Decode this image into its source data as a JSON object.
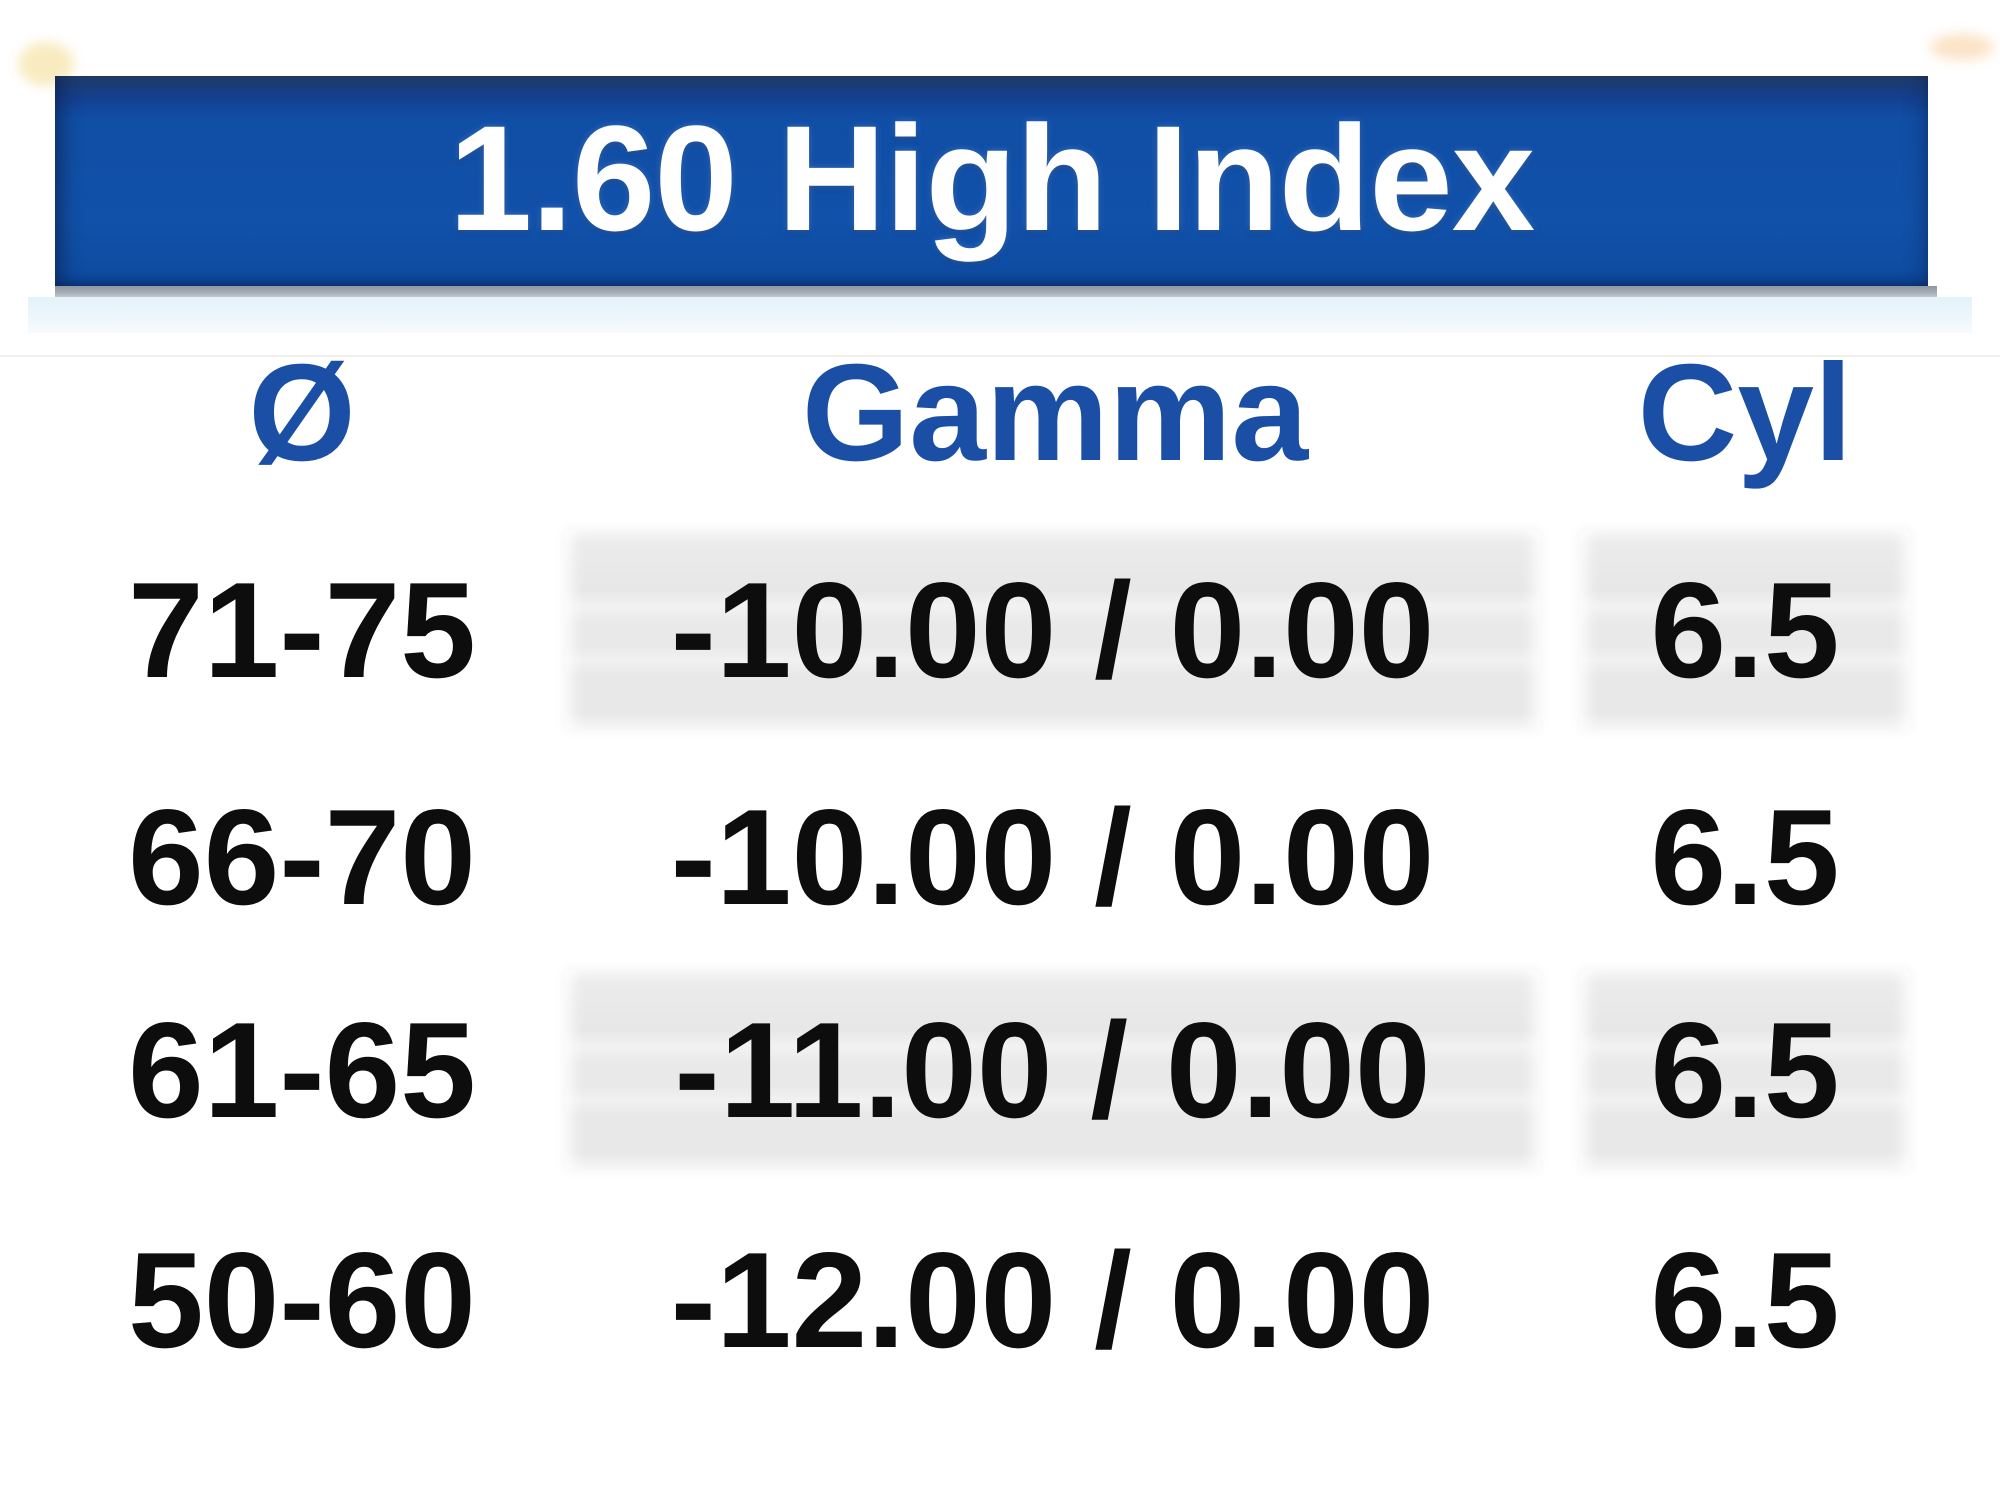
{
  "table": {
    "title": "1.60 High Index",
    "columns": [
      {
        "key": "dia",
        "label": "Ø"
      },
      {
        "key": "gamma",
        "label": "Gamma"
      },
      {
        "key": "cyl",
        "label": "Cyl"
      }
    ],
    "rows": [
      {
        "dia": "71-75",
        "gamma": "-10.00 / 0.00",
        "cyl": "6.5"
      },
      {
        "dia": "66-70",
        "gamma": "-10.00 / 0.00",
        "cyl": "6.5"
      },
      {
        "dia": "61-65",
        "gamma": "-11.00 / 0.00",
        "cyl": "6.5"
      },
      {
        "dia": "50-60",
        "gamma": "-12.00 / 0.00",
        "cyl": "6.5"
      }
    ],
    "colors": {
      "title_bar_blue": "#1150a8",
      "title_text": "#ffffff",
      "column_header_blue": "#1b4fa5",
      "row_text": "#0d0d0d",
      "shaded_cell_gray": "#e9e9e9",
      "bar_shadow_gray": "#a6adb6",
      "under_bar_band_blue": "#e8f3fa"
    }
  },
  "chart_data": {
    "type": "table",
    "title": "1.60 High Index",
    "columns": [
      "Ø",
      "Gamma",
      "Cyl"
    ],
    "rows": [
      [
        "71-75",
        "-10.00 / 0.00",
        "6.5"
      ],
      [
        "66-70",
        "-10.00 / 0.00",
        "6.5"
      ],
      [
        "61-65",
        "-11.00 / 0.00",
        "6.5"
      ],
      [
        "50-60",
        "-12.00 / 0.00",
        "6.5"
      ]
    ],
    "notes_layout": "zebra shading on rows 1 and 3 applied to Gamma and Cyl cells only"
  }
}
